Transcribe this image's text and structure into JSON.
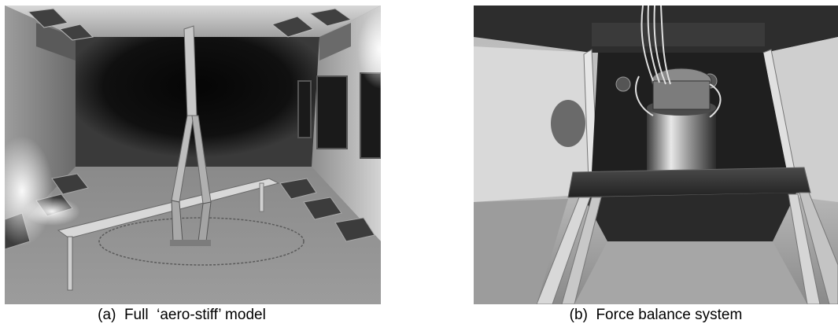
{
  "figure": {
    "panels": [
      {
        "id": "a",
        "caption": "(a)  Full  ‘aero-stiff’ model",
        "photo_subject": "wind tunnel model"
      },
      {
        "id": "b",
        "caption": "(b)  Force balance system",
        "photo_subject": "force balance"
      }
    ]
  }
}
